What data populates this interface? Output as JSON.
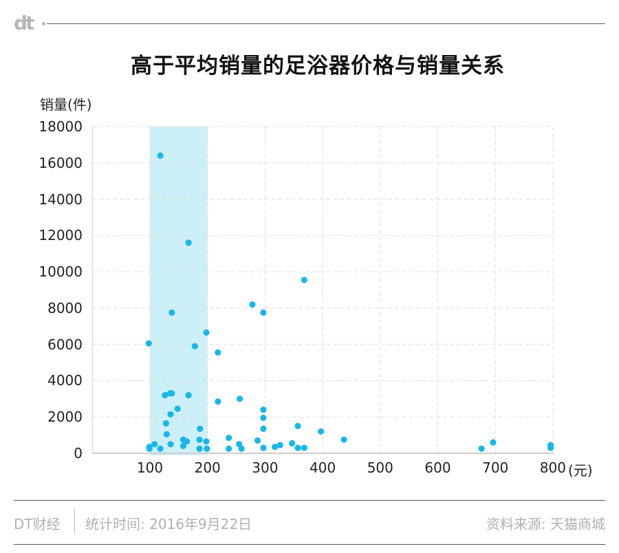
{
  "header": {
    "logo_text": "dt",
    "title": "高于平均销量的足浴器价格与销量关系"
  },
  "colors": {
    "point": "#17b7ea",
    "highlight_band": "#cdeff8",
    "grid": "#dddddd",
    "axis": "#cccccc"
  },
  "chart_data": {
    "type": "scatter",
    "title": "高于平均销量的足浴器价格与销量关系",
    "xlabel": "(元)",
    "ylabel": "销量(件)",
    "xlim": [
      0,
      800
    ],
    "ylim": [
      0,
      18000
    ],
    "x_ticks": [
      "100",
      "200",
      "300",
      "400",
      "500",
      "600",
      "700",
      "800"
    ],
    "y_ticks": [
      "0",
      "2000",
      "4000",
      "6000",
      "8000",
      "10000",
      "12000",
      "14000",
      "16000",
      "18000"
    ],
    "grid": true,
    "highlight_range_x": [
      100,
      200
    ],
    "points": [
      [
        118,
        16400
      ],
      [
        167,
        11600
      ],
      [
        368,
        9550
      ],
      [
        278,
        8200
      ],
      [
        138,
        7750
      ],
      [
        297,
        7750
      ],
      [
        198,
        6650
      ],
      [
        98,
        6050
      ],
      [
        178,
        5900
      ],
      [
        218,
        5550
      ],
      [
        126,
        3200
      ],
      [
        135,
        3300
      ],
      [
        138,
        3300
      ],
      [
        167,
        3200
      ],
      [
        256,
        3000
      ],
      [
        218,
        2850
      ],
      [
        148,
        2450
      ],
      [
        297,
        2400
      ],
      [
        136,
        2150
      ],
      [
        297,
        1950
      ],
      [
        128,
        1650
      ],
      [
        357,
        1500
      ],
      [
        187,
        1350
      ],
      [
        297,
        1350
      ],
      [
        397,
        1200
      ],
      [
        129,
        1050
      ],
      [
        237,
        850
      ],
      [
        158,
        750
      ],
      [
        186,
        750
      ],
      [
        437,
        750
      ],
      [
        287,
        700
      ],
      [
        164,
        650
      ],
      [
        198,
        650
      ],
      [
        696,
        600
      ],
      [
        347,
        550
      ],
      [
        108,
        500
      ],
      [
        136,
        500
      ],
      [
        255,
        500
      ],
      [
        326,
        450
      ],
      [
        796,
        450
      ],
      [
        158,
        400
      ],
      [
        99,
        350
      ],
      [
        317,
        350
      ],
      [
        297,
        300
      ],
      [
        357,
        300
      ],
      [
        368,
        300
      ],
      [
        796,
        300
      ],
      [
        118,
        250
      ],
      [
        199,
        250
      ],
      [
        676,
        250
      ],
      [
        99,
        250
      ],
      [
        186,
        250
      ],
      [
        237,
        250
      ],
      [
        259,
        250
      ]
    ]
  },
  "footer": {
    "brand": "DT财经",
    "date": "统计时间: 2016年9月22日",
    "source": "资料来源: 天猫商城"
  }
}
